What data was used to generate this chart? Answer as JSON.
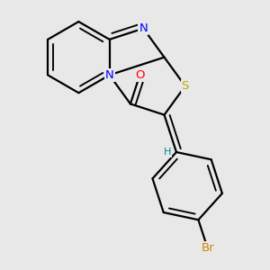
{
  "background_color": "#e8e8e8",
  "bond_color": "#000000",
  "bond_width": 1.6,
  "dbo": 0.055,
  "atom_colors": {
    "N": "#0000ff",
    "S": "#bbaa00",
    "O": "#ff0000",
    "Br": "#cc8800",
    "H": "#008888",
    "C": "#000000"
  },
  "font_size": 9.5,
  "fig_width": 3.0,
  "fig_height": 3.0,
  "dpi": 100
}
